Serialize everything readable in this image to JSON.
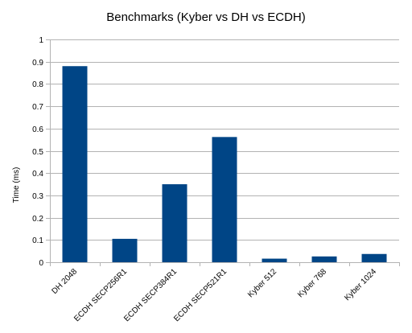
{
  "chart_data": {
    "type": "bar",
    "title": "Benchmarks (Kyber vs DH vs ECDH)",
    "xlabel": "",
    "ylabel": "Time (ms)",
    "categories": [
      "DH 2048",
      "ECDH SECP256R1",
      "ECDH SECP384R1",
      "ECDH SECP521R1",
      "Kyber 512",
      "Kyber 768",
      "Kyber 1024"
    ],
    "values": [
      0.88,
      0.105,
      0.35,
      0.562,
      0.016,
      0.026,
      0.037
    ],
    "ylim": [
      0,
      1
    ],
    "yticks": [
      "0",
      "0.1",
      "0.2",
      "0.3",
      "0.4",
      "0.5",
      "0.6",
      "0.7",
      "0.8",
      "0.9",
      "1"
    ],
    "grid": "horizontal",
    "legend": "none",
    "colors": {
      "bar": "#004586",
      "grid": "#b3b3b3",
      "axis": "#b3b3b3"
    }
  }
}
